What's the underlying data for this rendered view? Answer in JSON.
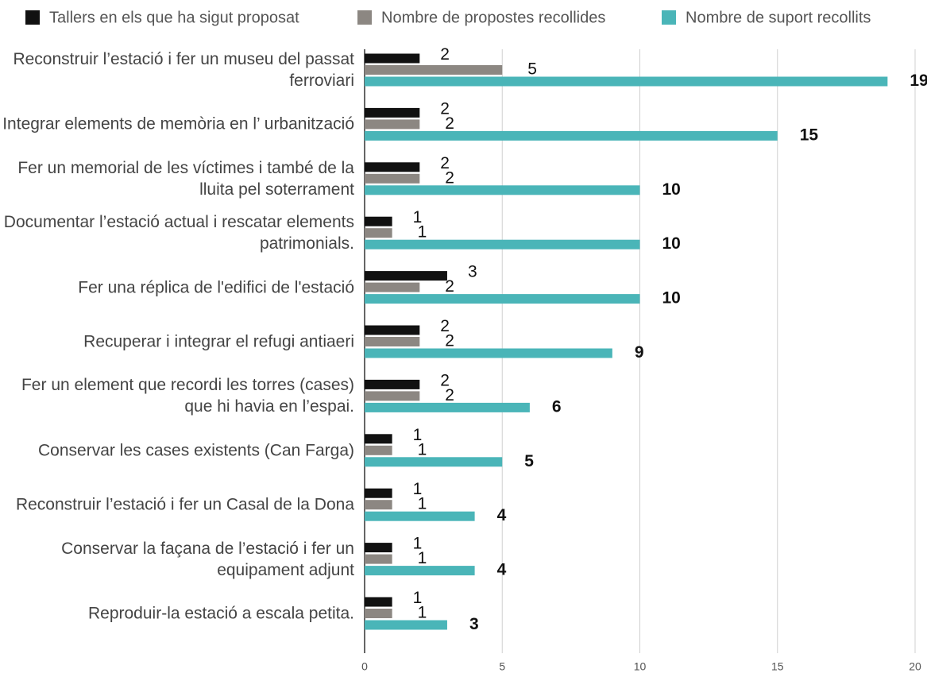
{
  "chart_data": {
    "type": "bar",
    "orientation": "horizontal",
    "categories": [
      "Reconstruir l’estació i fer un museu del passat ferroviari",
      "Integrar elements de memòria en l’ urbanització",
      "Fer un memorial de les víctimes i també de la lluita pel soterrament",
      "Documentar l’estació actual i rescatar elements patrimonials.",
      "Fer una réplica de l'edifici de l'estació",
      "Recuperar i integrar el refugi antiaeri",
      "Fer un element que recordi les torres (cases) que hi havia en l’espai.",
      "Conservar les cases existents (Can Farga)",
      "Reconstruir l’estació i fer un Casal de la Dona",
      "Conservar la façana de l’estació i fer un equipament adjunt",
      "Reproduir-la estació a escala petita."
    ],
    "series": [
      {
        "name": "Tallers en els que ha sigut proposat",
        "color": "#111111",
        "values": [
          2,
          2,
          2,
          1,
          3,
          2,
          2,
          1,
          1,
          1,
          1
        ]
      },
      {
        "name": "Nombre de propostes recollides",
        "color": "#8c8782",
        "values": [
          5,
          2,
          2,
          1,
          2,
          2,
          2,
          1,
          1,
          1,
          1
        ]
      },
      {
        "name": "Nombre de suport recollits",
        "color": "#4ab5b8",
        "values": [
          19,
          15,
          10,
          10,
          10,
          9,
          6,
          5,
          4,
          4,
          3
        ]
      }
    ],
    "xlim": [
      0,
      20
    ],
    "xticks": [
      0,
      5,
      10,
      15,
      20
    ],
    "grid": true,
    "legend": "top"
  }
}
